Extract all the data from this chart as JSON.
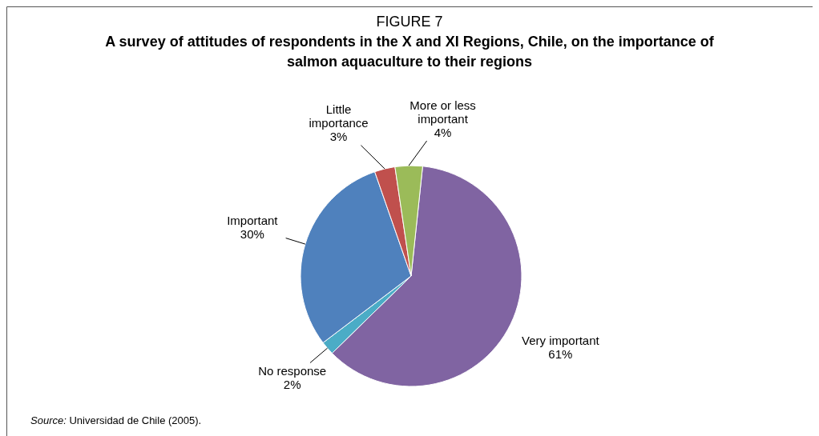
{
  "chart_data": {
    "type": "pie",
    "title": "FIGURE 7",
    "subtitle": "A survey of attitudes of respondents in the X and XI Regions, Chile, on the importance of salmon aquaculture to their regions",
    "categories": [
      "Very important",
      "No response",
      "Important",
      "Little importance",
      "More or less important"
    ],
    "values": [
      61,
      2,
      30,
      3,
      4
    ],
    "colors": [
      "#8064a2",
      "#4bacc6",
      "#4f81bd",
      "#c0504d",
      "#9bbb59"
    ],
    "value_labels": [
      "61%",
      "2%",
      "30%",
      "3%",
      "4%"
    ],
    "annotations": [
      "Source: Universidad de Chile (2005)."
    ]
  }
}
